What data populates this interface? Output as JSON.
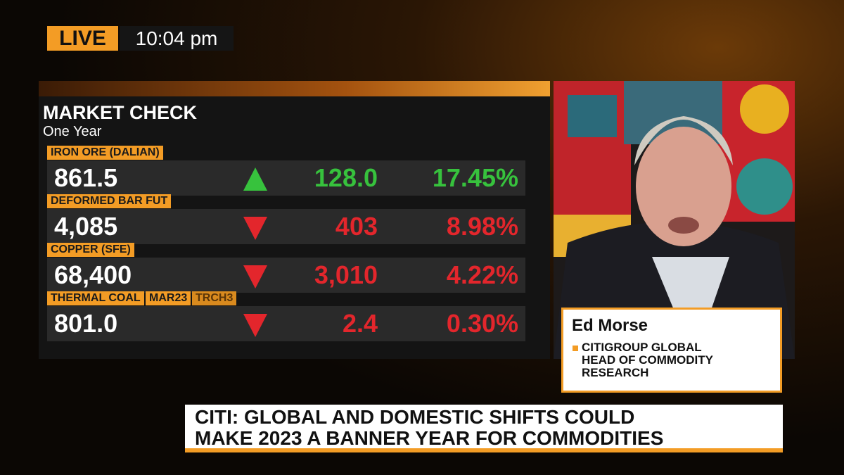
{
  "badge": {
    "live": "LIVE",
    "time": "10:04 pm"
  },
  "panel": {
    "title": "MARKET CHECK",
    "subtitle": "One Year",
    "rows": [
      {
        "label": "IRON ORE (DALIAN)",
        "price": "861.5",
        "direction": "up",
        "change": "128.0",
        "percent": "17.45%"
      },
      {
        "label": "DEFORMED BAR FUT",
        "price": "4,085",
        "direction": "down",
        "change": "403",
        "percent": "8.98%"
      },
      {
        "label": "COPPER (SFE)",
        "price": "68,400",
        "direction": "down",
        "change": "3,010",
        "percent": "4.22%"
      },
      {
        "label": "THERMAL COAL",
        "contract": "MAR23",
        "ticker": "TRCH3",
        "price": "801.0",
        "direction": "down",
        "change": "2.4",
        "percent": "0.30%"
      }
    ]
  },
  "guest": {
    "name": "Ed Morse",
    "title_lines": [
      "CITIGROUP GLOBAL",
      "HEAD OF COMMODITY",
      "RESEARCH"
    ]
  },
  "headline": {
    "lines": [
      "CITI: GLOBAL AND DOMESTIC SHIFTS COULD",
      "MAKE 2023 A BANNER YEAR FOR COMMODITIES"
    ]
  }
}
